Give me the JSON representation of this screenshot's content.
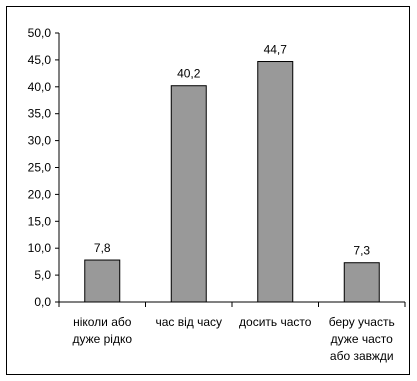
{
  "chart_data": {
    "type": "bar",
    "categories": [
      [
        "ніколи або",
        "дуже рідко"
      ],
      [
        "час від часу"
      ],
      [
        "досить часто"
      ],
      [
        "беру участь",
        "дуже часто",
        "або завжди"
      ]
    ],
    "values": [
      7.8,
      40.2,
      44.7,
      7.3
    ],
    "data_labels": [
      "7,8",
      "40,2",
      "44,7",
      "7,3"
    ],
    "yticks": [
      "0,0",
      "5,0",
      "10,0",
      "15,0",
      "20,0",
      "25,0",
      "30,0",
      "35,0",
      "40,0",
      "45,0",
      "50,0"
    ],
    "ylim": [
      0,
      50
    ],
    "ystep": 5,
    "grid": false,
    "legend": "none",
    "title": "",
    "xlabel": "",
    "ylabel": "",
    "colors": {
      "bar_fill": "#999999",
      "bar_stroke": "#000000",
      "axis": "#000000"
    }
  }
}
